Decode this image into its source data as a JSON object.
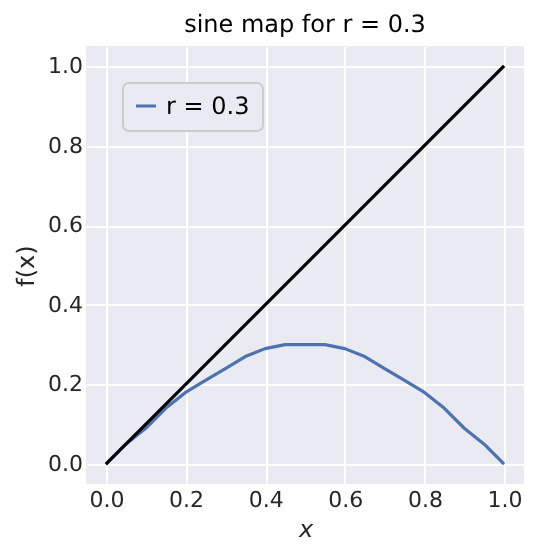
{
  "chart_data": {
    "type": "line",
    "title": "sine map for r = 0.3",
    "xlabel": "x",
    "ylabel": "f(x)",
    "series": [
      {
        "name": "r = 0.3",
        "color": "#4c72b0",
        "x": [
          0,
          0.05,
          0.1,
          0.15,
          0.2,
          0.25,
          0.3,
          0.35,
          0.4,
          0.45,
          0.5,
          0.55,
          0.6,
          0.65,
          0.7,
          0.75,
          0.8,
          0.85,
          0.9,
          0.95,
          1.0
        ],
        "values": [
          0,
          0.05,
          0.09,
          0.14,
          0.18,
          0.21,
          0.24,
          0.27,
          0.29,
          0.3,
          0.3,
          0.3,
          0.29,
          0.27,
          0.24,
          0.21,
          0.18,
          0.14,
          0.09,
          0.05,
          0
        ]
      },
      {
        "color": "#000000",
        "x": [
          0,
          1
        ],
        "values": [
          0,
          1
        ]
      }
    ],
    "xlim": [
      -0.05,
      1.05
    ],
    "ylim": [
      -0.05,
      1.05
    ],
    "xticks": [
      {
        "value": 0,
        "label": "0.0"
      },
      0.2,
      0.4,
      0.6,
      0.8,
      {
        "value": 1,
        "label": "1.0"
      }
    ],
    "yticks": [
      {
        "value": 0,
        "label": "0.0"
      },
      0.2,
      0.4,
      0.6,
      0.8,
      {
        "value": 1,
        "label": "1.0"
      }
    ],
    "grid": true,
    "legend": "top left",
    "marker": "none",
    "line_style": "solid"
  }
}
